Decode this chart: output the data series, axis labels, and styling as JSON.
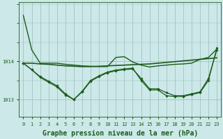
{
  "background_color": "#cce8e8",
  "grid_color": "#99bbbb",
  "line_color": "#1a5c1a",
  "title": "Graphe pression niveau de la mer (hPa)",
  "xlim_min": -0.5,
  "xlim_max": 23.5,
  "ylim_min": 1012.55,
  "ylim_max": 1015.55,
  "yticks": [
    1013,
    1014
  ],
  "xticks": [
    0,
    1,
    2,
    3,
    4,
    5,
    6,
    7,
    8,
    9,
    10,
    11,
    12,
    13,
    14,
    15,
    16,
    17,
    18,
    19,
    20,
    21,
    22,
    23
  ],
  "series": [
    {
      "y": [
        1015.2,
        1014.3,
        1013.95,
        1013.95,
        1013.95,
        1013.92,
        1013.9,
        1013.88,
        1013.87,
        1013.86,
        1013.86,
        1014.1,
        1014.12,
        1013.98,
        1013.9,
        1013.85,
        1013.88,
        1013.9,
        1013.92,
        1013.93,
        1013.95,
        1014.05,
        1014.1,
        1014.32
      ],
      "has_markers": false,
      "lw": 1.0
    },
    {
      "y": [
        1013.95,
        1013.95,
        1013.93,
        1013.92,
        1013.9,
        1013.88,
        1013.87,
        1013.86,
        1013.86,
        1013.87,
        1013.88,
        1013.89,
        1013.9,
        1013.91,
        1013.92,
        1013.93,
        1013.95,
        1013.97,
        1013.99,
        1014.01,
        1014.03,
        1014.05,
        1014.07,
        1014.09
      ],
      "has_markers": false,
      "lw": 1.2
    },
    {
      "y": [
        1013.95,
        1013.78,
        1013.6,
        1013.48,
        1013.36,
        1013.15,
        1013.0,
        1013.2,
        1013.48,
        1013.6,
        1013.7,
        1013.75,
        1013.78,
        1013.8,
        1013.55,
        1013.28,
        1013.28,
        1013.18,
        1013.1,
        1013.1,
        1013.15,
        1013.2,
        1013.55,
        1014.3
      ],
      "has_markers": true,
      "lw": 0.9
    },
    {
      "y": [
        1013.95,
        1013.78,
        1013.58,
        1013.45,
        1013.33,
        1013.12,
        1013.0,
        1013.22,
        1013.5,
        1013.62,
        1013.72,
        1013.77,
        1013.8,
        1013.82,
        1013.5,
        1013.25,
        1013.25,
        1013.1,
        1013.08,
        1013.08,
        1013.13,
        1013.18,
        1013.5,
        1014.35
      ],
      "has_markers": true,
      "lw": 0.9
    }
  ],
  "title_fontsize": 7,
  "tick_fontsize": 5,
  "ms": 1.8
}
